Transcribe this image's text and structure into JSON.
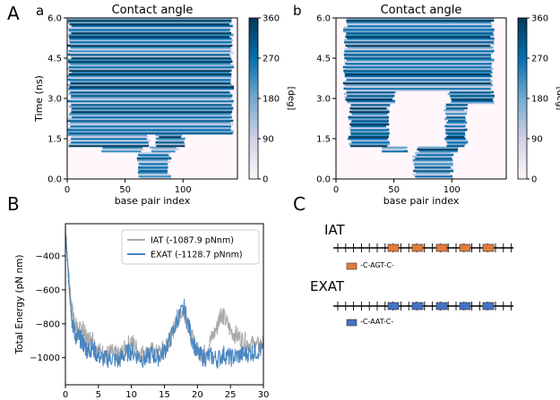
{
  "panels": {
    "A": "A",
    "a": "a",
    "b": "b",
    "B": "B",
    "C": "C"
  },
  "chart_data": [
    {
      "type": "heatmap",
      "title": "Contact angle",
      "xlabel": "base pair index",
      "ylabel": "Time (ns)",
      "xlim": [
        0,
        147
      ],
      "ylim": [
        0,
        6.0
      ],
      "xticks": [
        "0",
        "50",
        "100"
      ],
      "yticks": [
        "0.0",
        "1.5",
        "3.0",
        "4.5",
        "6.0"
      ],
      "colorbar": {
        "label": "[deg]",
        "ticks": [
          "0",
          "90",
          "180",
          "270",
          "360"
        ],
        "range": [
          0,
          360
        ],
        "cmap": "PuBu"
      },
      "note": "Contact region (blue stripes) spans bp ~2–142 for t ≥ 1.7 ns; narrows to bp ~60–87 for t < 1 ns"
    },
    {
      "type": "heatmap",
      "title": "Contact angle",
      "xlabel": "base pair index",
      "ylabel": "",
      "xlim": [
        0,
        147
      ],
      "ylim": [
        0,
        6.0
      ],
      "xticks": [
        "0",
        "50",
        "100"
      ],
      "yticks": [
        "0.0",
        "1.5",
        "3.0",
        "4.5",
        "6.0"
      ],
      "colorbar": {
        "label": "[deg]",
        "ticks": [
          "0",
          "90",
          "180",
          "270",
          "360"
        ],
        "range": [
          0,
          360
        ],
        "cmap": "PuBu"
      },
      "note": "Contact region (blue stripes) spans bp ~10–135 for t ≥ 3.3 ns; hole at bp ~45–95 between 1.2–2.8 ns; narrows to bp ~68–100 for t < 1 ns"
    },
    {
      "type": "line",
      "title": "",
      "xlabel": "Time (ns)",
      "ylabel": "Total Energy (pN nm)",
      "xlim": [
        0,
        30
      ],
      "ylim": [
        -1160,
        -210
      ],
      "xticks": [
        0,
        5,
        10,
        15,
        20,
        25,
        30
      ],
      "yticks": [
        -400,
        -600,
        -800,
        -1000
      ],
      "legend_position": "top-right",
      "series": [
        {
          "name": "IAT (-1087.9 pNnm)",
          "color": "#a9a9a9",
          "x": [
            0,
            0.3,
            0.6,
            1,
            1.5,
            2,
            2.5,
            3,
            3.5,
            4,
            5,
            6,
            7,
            8,
            9,
            10,
            11,
            12,
            13,
            14,
            15,
            16,
            17,
            18,
            19,
            20,
            21,
            22,
            23,
            23.5,
            24,
            25,
            26,
            27,
            28,
            29,
            30
          ],
          "values": [
            -250,
            -420,
            -560,
            -720,
            -800,
            -850,
            -820,
            -870,
            -900,
            -870,
            -960,
            -980,
            -970,
            -990,
            -950,
            -900,
            -960,
            -980,
            -960,
            -980,
            -940,
            -880,
            -760,
            -720,
            -870,
            -960,
            -980,
            -900,
            -820,
            -730,
            -760,
            -840,
            -870,
            -900,
            -920,
            -930,
            -920
          ]
        },
        {
          "name": "EXAT (-1128.7 pNnm)",
          "color": "#4a86bf",
          "x": [
            0,
            0.3,
            0.6,
            1,
            1.5,
            2,
            2.5,
            3,
            3.5,
            4,
            5,
            6,
            7,
            8,
            9,
            10,
            11,
            12,
            13,
            14,
            15,
            16,
            17,
            18,
            19,
            20,
            21,
            22,
            23,
            24,
            25,
            26,
            27,
            28,
            29,
            30
          ],
          "values": [
            -250,
            -430,
            -600,
            -780,
            -870,
            -880,
            -900,
            -940,
            -960,
            -940,
            -990,
            -1010,
            -1000,
            -1020,
            -980,
            -960,
            -990,
            -1010,
            -980,
            -1000,
            -960,
            -880,
            -770,
            -710,
            -860,
            -980,
            -1000,
            -990,
            -1010,
            -980,
            -1000,
            -990,
            -980,
            -970,
            -960,
            -950
          ]
        }
      ]
    }
  ],
  "diagram": {
    "iat_label": "IAT",
    "exat_label": "EXAT",
    "iat_legend": "-C-AGT-C-",
    "exat_legend": "-C-AAT-C-",
    "iat_color": "#e07b39",
    "exat_color": "#4472c4"
  }
}
